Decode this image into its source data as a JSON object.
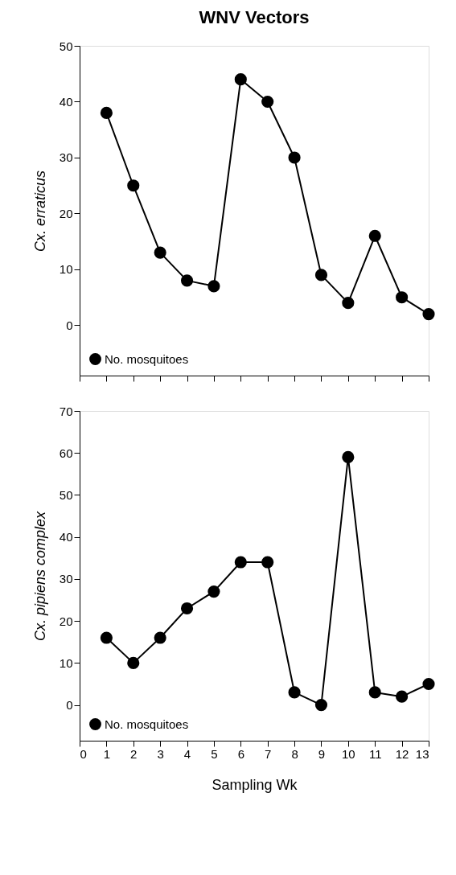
{
  "chart_data": [
    {
      "type": "line",
      "title": "WNV Vectors",
      "ylabel": "Cx. erraticus",
      "x": [
        1,
        2,
        3,
        4,
        5,
        6,
        7,
        8,
        9,
        10,
        11,
        12,
        13
      ],
      "series": [
        {
          "name": "No. mosquitoes",
          "color": "#000000",
          "values": [
            38,
            25,
            13,
            8,
            7,
            44,
            40,
            30,
            9,
            4,
            16,
            5,
            2
          ]
        }
      ],
      "xlim": [
        0,
        13
      ],
      "xticks": [
        {
          "value": 0,
          "label": null
        },
        {
          "value": 1,
          "label": null
        },
        {
          "value": 2,
          "label": null
        },
        {
          "value": 3,
          "label": null
        },
        {
          "value": 4,
          "label": null
        },
        {
          "value": 5,
          "label": null
        },
        {
          "value": 6,
          "label": null
        },
        {
          "value": 7,
          "label": null
        },
        {
          "value": 8,
          "label": null
        },
        {
          "value": 9,
          "label": null
        },
        {
          "value": 10,
          "label": null
        },
        {
          "value": 11,
          "label": null
        },
        {
          "value": 12,
          "label": null
        },
        {
          "value": 13,
          "label": null
        }
      ],
      "ylim": [
        -9,
        50
      ],
      "yticks": [
        0,
        10,
        20,
        30,
        40,
        50
      ],
      "tick_labels": "y",
      "grid": false,
      "legend": "bottom left",
      "marker": "circle",
      "line_style": "solid"
    },
    {
      "type": "line",
      "xlabel": "Sampling Wk",
      "ylabel": "Cx. pipiens complex",
      "x": [
        1,
        2,
        3,
        4,
        5,
        6,
        7,
        8,
        9,
        10,
        11,
        12,
        13
      ],
      "series": [
        {
          "name": "No. mosquitoes",
          "color": "#000000",
          "values": [
            16,
            10,
            16,
            23,
            27,
            34,
            34,
            3,
            0,
            59,
            3,
            2,
            5
          ]
        }
      ],
      "xlim": [
        0,
        13
      ],
      "xticks": [
        0,
        1,
        2,
        3,
        4,
        5,
        6,
        7,
        8,
        9,
        10,
        11,
        12,
        13
      ],
      "ylim": [
        -8.5,
        70
      ],
      "yticks": [
        0,
        10,
        20,
        30,
        40,
        50,
        60,
        70
      ],
      "grid": false,
      "legend": "bottom left",
      "marker": "circle",
      "line_style": "solid"
    }
  ]
}
